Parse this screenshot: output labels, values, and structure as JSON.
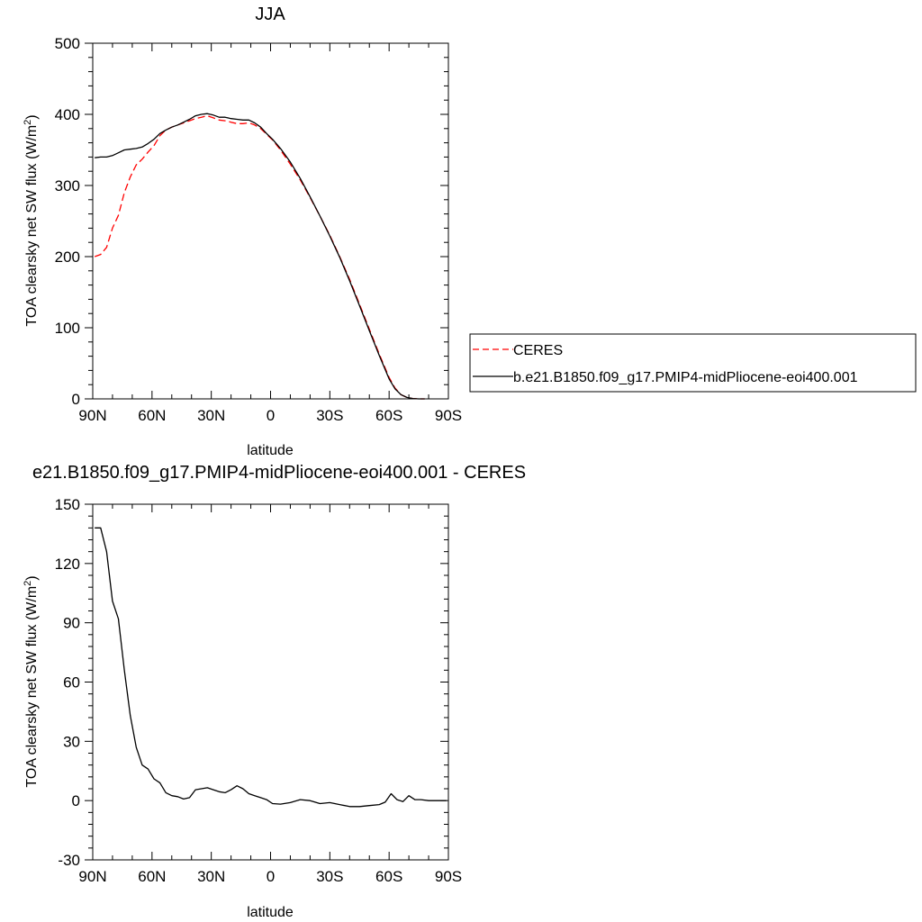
{
  "chart_data": [
    {
      "type": "line",
      "title": "JJA",
      "xlabel": "latitude",
      "ylabel": "TOA clearsky net SW flux (W/m",
      "ylabel_sup": "2",
      "ylabel_close": ")",
      "xlim": [
        90,
        -90
      ],
      "ylim": [
        0,
        500
      ],
      "x_ticks": [
        90,
        60,
        30,
        0,
        -30,
        -60,
        -90
      ],
      "x_tick_labels": [
        "90N",
        "60N",
        "30N",
        "0",
        "30S",
        "60S",
        "90S"
      ],
      "y_ticks": [
        0,
        100,
        200,
        300,
        400,
        500
      ],
      "y_tick_labels": [
        "0",
        "100",
        "200",
        "300",
        "400",
        "500"
      ],
      "grid": false,
      "legend": {
        "placement": "right",
        "entries": [
          "CERES",
          "b.e21.B1850.f09_g17.PMIP4-midPliocene-eoi400.001"
        ]
      },
      "series": [
        {
          "name": "CERES",
          "color": "#ff0000",
          "dash": "dashed",
          "x": [
            89,
            86,
            83,
            80,
            77,
            74,
            71,
            68,
            65,
            62,
            59,
            56,
            53,
            50,
            47,
            44,
            41,
            38,
            35,
            32,
            29,
            26,
            23,
            20,
            17,
            14,
            11,
            8,
            5,
            2,
            -1,
            -5,
            -10,
            -15,
            -20,
            -25,
            -30,
            -35,
            -40,
            -45,
            -50,
            -55,
            -60,
            -63,
            -66,
            -69,
            -72,
            -75,
            -78
          ],
          "y": [
            200,
            203,
            213,
            240,
            258,
            290,
            312,
            329,
            337,
            347,
            356,
            370,
            378,
            382,
            385,
            388,
            391,
            394,
            396,
            398,
            395,
            392,
            391,
            389,
            387,
            387,
            388,
            385,
            380,
            372,
            364,
            350,
            330,
            308,
            283,
            257,
            230,
            200,
            168,
            133,
            98,
            63,
            30,
            15,
            6,
            2,
            0.5,
            0,
            0
          ]
        },
        {
          "name": "b.e21.B1850.f09_g17.PMIP4-midPliocene-eoi400.001",
          "color": "#000000",
          "dash": "solid",
          "x": [
            89,
            86,
            83,
            80,
            77,
            74,
            71,
            68,
            65,
            62,
            59,
            56,
            53,
            50,
            47,
            44,
            41,
            38,
            35,
            32,
            29,
            26,
            23,
            20,
            17,
            14,
            11,
            8,
            5,
            2,
            -1,
            -5,
            -10,
            -15,
            -20,
            -25,
            -30,
            -35,
            -40,
            -45,
            -50,
            -55,
            -60,
            -63,
            -66,
            -69,
            -72,
            -75,
            -78
          ],
          "y": [
            339,
            340,
            340,
            342,
            346,
            350,
            351,
            352,
            354,
            359,
            365,
            373,
            378,
            382,
            385,
            389,
            393,
            398,
            400,
            401,
            399,
            396,
            396,
            394,
            393,
            392,
            392,
            388,
            382,
            373,
            365,
            352,
            333,
            310,
            284,
            257,
            229,
            199,
            166,
            131,
            96,
            61,
            28,
            14,
            6,
            2,
            0.5,
            0,
            0
          ]
        }
      ]
    },
    {
      "type": "line",
      "title": "e21.B1850.f09_g17.PMIP4-midPliocene-eoi400.001 - CERES",
      "xlabel": "latitude",
      "ylabel": "TOA clearsky net SW flux (W/m",
      "ylabel_sup": "2",
      "ylabel_close": ")",
      "xlim": [
        90,
        -90
      ],
      "ylim": [
        -30,
        150
      ],
      "x_ticks": [
        90,
        60,
        30,
        0,
        -30,
        -60,
        -90
      ],
      "x_tick_labels": [
        "90N",
        "60N",
        "30N",
        "0",
        "30S",
        "60S",
        "90S"
      ],
      "y_ticks": [
        -30,
        0,
        30,
        60,
        90,
        120,
        150
      ],
      "y_tick_labels": [
        "-30",
        "0",
        "30",
        "60",
        "90",
        "120",
        "150"
      ],
      "grid": false,
      "series": [
        {
          "color": "#000000",
          "dash": "solid",
          "x": [
            89,
            86,
            83,
            80,
            77,
            74,
            71,
            68,
            65,
            62,
            59,
            56,
            53,
            50,
            47,
            44,
            41,
            38,
            35,
            32,
            29,
            26,
            23,
            20,
            17,
            14,
            11,
            8,
            5,
            2,
            -1,
            -5,
            -10,
            -15,
            -20,
            -25,
            -30,
            -35,
            -40,
            -45,
            -50,
            -55,
            -58,
            -61,
            -64,
            -67,
            -70,
            -73,
            -76,
            -80,
            -85,
            -89
          ],
          "y": [
            138,
            138,
            126,
            101,
            92,
            66,
            43,
            27,
            18,
            16,
            11,
            9,
            4,
            2.5,
            2,
            0.8,
            1.5,
            5.5,
            6,
            6.5,
            5.5,
            4.5,
            4,
            5.5,
            7.5,
            6,
            3.5,
            2.5,
            1.5,
            0.5,
            -1.5,
            -1.8,
            -1,
            0.5,
            0,
            -1.5,
            -1,
            -2,
            -3,
            -3,
            -2.5,
            -2,
            -0.8,
            3.5,
            0.5,
            -0.5,
            2.5,
            0.5,
            0.5,
            0,
            0,
            0
          ]
        }
      ]
    }
  ]
}
